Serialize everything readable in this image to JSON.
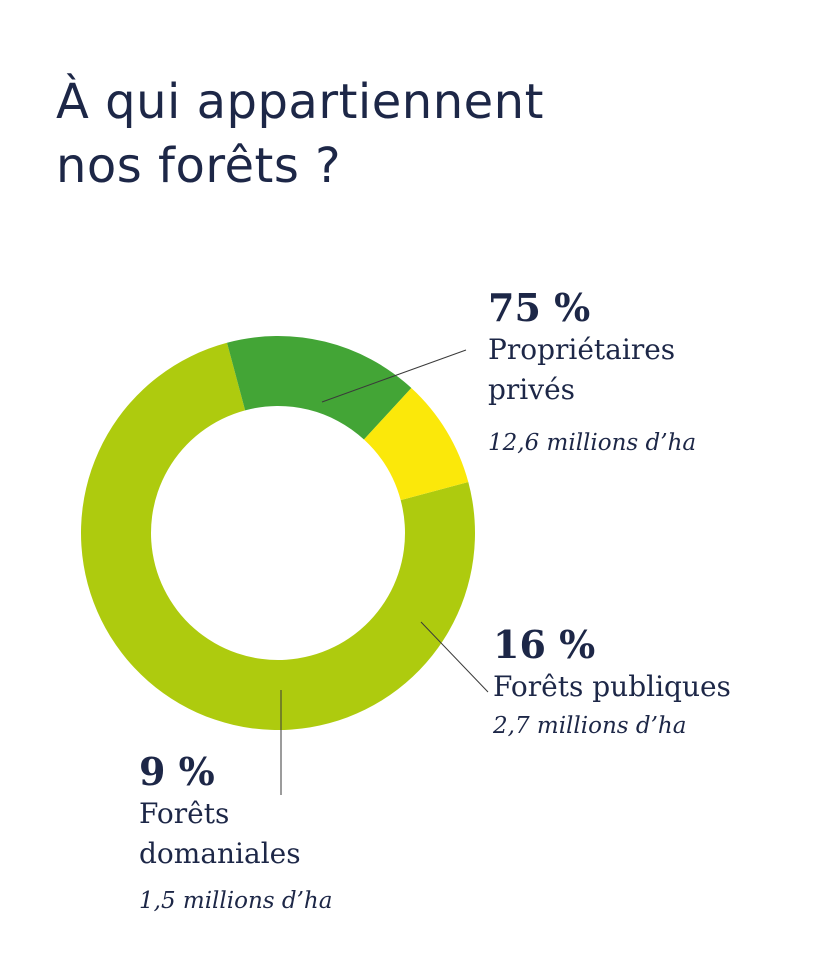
{
  "title": {
    "line1": "À qui appartiennent",
    "line2": "nos forêts ?"
  },
  "chart_data": {
    "type": "pie",
    "donut": true,
    "slices": [
      {
        "key": "prives",
        "percent": 75,
        "percent_label": "75 %",
        "name_lines": [
          "Propriétaires",
          "privés"
        ],
        "amount": "12,6 millions d’ha",
        "color": "#aecb0e"
      },
      {
        "key": "publiques",
        "percent": 16,
        "percent_label": "16 %",
        "name_lines": [
          "Forêts publiques"
        ],
        "amount": "2,7 millions d’ha",
        "color": "#43a536"
      },
      {
        "key": "domaniales",
        "percent": 9,
        "percent_label": "9 %",
        "name_lines": [
          "Forêts",
          "domaniales"
        ],
        "amount": "1,5 millions d’ha",
        "color": "#fbe80a"
      }
    ]
  }
}
